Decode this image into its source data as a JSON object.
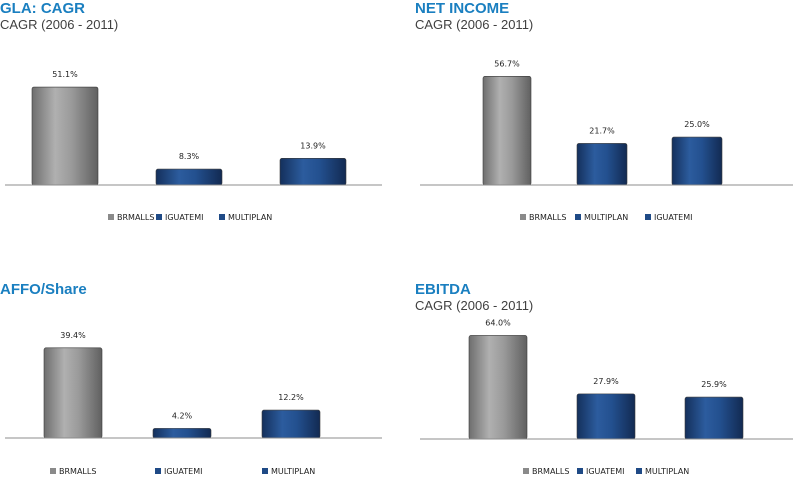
{
  "colors": {
    "title": "#1a7fc0",
    "brmalls": "#8a8a8a",
    "blue": "#1f4a86"
  },
  "chart_data": [
    {
      "type": "bar",
      "title": "GLA: CAGR",
      "subtitle": "CAGR (2006 - 2011)",
      "categories": [
        "BRMALLS",
        "IGUATEMI",
        "MULTIPLAN"
      ],
      "values": [
        51.1,
        8.3,
        13.9
      ],
      "labels": [
        "51.1%",
        "8.3%",
        "13.9%"
      ],
      "legend": [
        "BRMALLS",
        "IGUATEMI",
        "MULTIPLAN"
      ],
      "legend_position": "bottom",
      "ylim": [
        0,
        60
      ],
      "grid": false
    },
    {
      "type": "bar",
      "title": "NET INCOME",
      "subtitle": "CAGR (2006 - 2011)",
      "categories": [
        "BRMALLS",
        "MULTIPLAN",
        "IGUATEMI"
      ],
      "values": [
        56.7,
        21.7,
        25.0
      ],
      "labels": [
        "56.7%",
        "21.7%",
        "25.0%"
      ],
      "legend": [
        "BRMALLS",
        "MULTIPLAN",
        "IGUATEMI"
      ],
      "legend_position": "bottom",
      "ylim": [
        0,
        60
      ],
      "grid": false
    },
    {
      "type": "bar",
      "title": "AFFO/Share",
      "subtitle": "",
      "categories": [
        "BRMALLS",
        "IGUATEMI",
        "MULTIPLAN"
      ],
      "values": [
        39.4,
        4.2,
        12.2
      ],
      "labels": [
        "39.4%",
        "4.2%",
        "12.2%"
      ],
      "legend": [
        "BRMALLS",
        "IGUATEMI",
        "MULTIPLAN"
      ],
      "legend_position": "bottom",
      "ylim": [
        0,
        45
      ],
      "grid": false
    },
    {
      "type": "bar",
      "title": "EBITDA",
      "subtitle": "CAGR (2006 - 2011)",
      "categories": [
        "BRMALLS",
        "IGUATEMI",
        "MULTIPLAN"
      ],
      "values": [
        64.0,
        27.9,
        25.9
      ],
      "labels": [
        "64.0%",
        "27.9%",
        "25.9%"
      ],
      "legend": [
        "BRMALLS",
        "IGUATEMI",
        "MULTIPLAN"
      ],
      "legend_position": "bottom",
      "ylim": [
        0,
        68
      ],
      "grid": false
    }
  ]
}
